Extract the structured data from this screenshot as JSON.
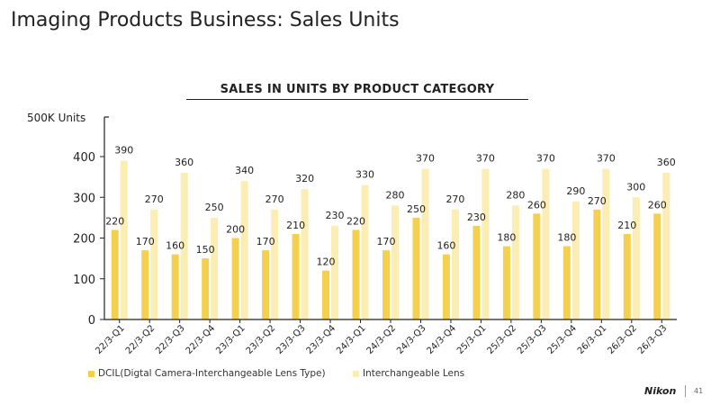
{
  "page": {
    "title": "Imaging Products Business: Sales Units",
    "brand": "Nikon",
    "page_number": "41"
  },
  "colors": {
    "dcil": "#F5D04E",
    "interchangeable_lens": "#FBEDB3",
    "axis": "#222222"
  },
  "chart_data": {
    "type": "bar",
    "title": "SALES IN UNITS BY PRODUCT CATEGORY",
    "ylabel": "500K Units",
    "xlabel": "",
    "ylim": [
      0,
      400
    ],
    "yticks": [
      0,
      100,
      200,
      300,
      400
    ],
    "grid": false,
    "legend_position": "bottom",
    "categories": [
      "22/3-Q1",
      "22/3-Q2",
      "22/3-Q3",
      "22/3-Q4",
      "23/3-Q1",
      "23/3-Q2",
      "23/3-Q3",
      "23/3-Q4",
      "24/3-Q1",
      "24/3-Q2",
      "24/3-Q3",
      "24/3-Q4",
      "25/3-Q1",
      "25/3-Q2",
      "25/3-Q3",
      "25/3-Q4",
      "26/3-Q1",
      "26/3-Q2",
      "26/3-Q3"
    ],
    "series": [
      {
        "name": "DCIL(Digtal Camera-Interchangeable Lens Type)",
        "values": [
          220,
          170,
          160,
          150,
          200,
          170,
          210,
          120,
          220,
          170,
          250,
          160,
          230,
          180,
          260,
          180,
          270,
          210,
          260
        ]
      },
      {
        "name": "Interchangeable Lens",
        "values": [
          390,
          270,
          360,
          250,
          340,
          270,
          320,
          230,
          330,
          280,
          370,
          270,
          370,
          280,
          370,
          290,
          370,
          300,
          360
        ]
      }
    ]
  }
}
